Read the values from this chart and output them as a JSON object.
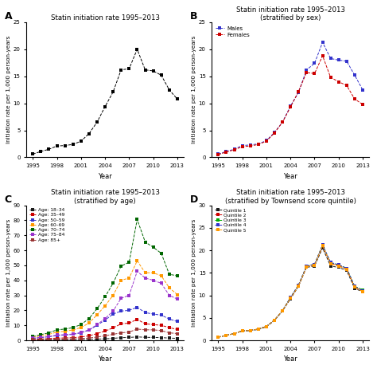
{
  "years": [
    1995,
    1996,
    1997,
    1998,
    1999,
    2000,
    2001,
    2002,
    2003,
    2004,
    2005,
    2006,
    2007,
    2008,
    2009,
    2010,
    2011,
    2012,
    2013
  ],
  "panel_A": {
    "title": "Statin initiation rate 1995–2013",
    "values": [
      0.6,
      1.1,
      1.5,
      2.1,
      2.2,
      2.4,
      3.0,
      4.4,
      6.5,
      9.4,
      12.1,
      16.2,
      16.4,
      20.0,
      16.2,
      16.0,
      15.2,
      12.5,
      10.8
    ]
  },
  "panel_B": {
    "title": "Statin initiation rate 1995–2013\n(stratified by sex)",
    "males": [
      0.6,
      1.1,
      1.5,
      2.2,
      2.3,
      2.5,
      3.1,
      4.6,
      6.5,
      9.5,
      12.0,
      16.2,
      17.4,
      21.3,
      18.3,
      18.0,
      17.8,
      15.2,
      12.5
    ],
    "females": [
      0.5,
      1.0,
      1.4,
      2.0,
      2.1,
      2.4,
      3.0,
      4.5,
      6.5,
      9.3,
      12.2,
      15.7,
      15.5,
      18.8,
      14.8,
      14.0,
      13.3,
      10.8,
      9.8
    ]
  },
  "panel_C": {
    "title": "Statin initiation rate 1995–2013\n(stratified by age)",
    "age_18_34": [
      0.2,
      0.3,
      0.3,
      0.4,
      0.4,
      0.4,
      0.5,
      0.6,
      0.8,
      1.0,
      1.3,
      1.8,
      1.9,
      2.3,
      2.0,
      1.9,
      1.8,
      1.5,
      1.3
    ],
    "age_35_49": [
      0.6,
      0.9,
      1.2,
      1.5,
      1.6,
      1.8,
      2.2,
      3.0,
      4.5,
      6.2,
      8.3,
      11.0,
      11.5,
      14.0,
      11.0,
      10.5,
      10.0,
      8.5,
      7.2
    ],
    "age_50_59": [
      1.2,
      1.8,
      2.4,
      3.2,
      3.5,
      4.0,
      5.0,
      6.8,
      10.0,
      13.5,
      17.5,
      19.5,
      20.0,
      22.0,
      18.5,
      17.5,
      16.8,
      14.2,
      12.5
    ],
    "age_60_69": [
      2.0,
      3.0,
      4.0,
      5.5,
      6.0,
      7.0,
      8.5,
      11.5,
      17.0,
      23.0,
      30.0,
      40.0,
      41.5,
      53.0,
      45.0,
      45.0,
      43.0,
      35.0,
      30.5
    ],
    "age_70_74": [
      2.5,
      3.8,
      5.0,
      7.0,
      7.5,
      8.5,
      10.5,
      14.5,
      21.0,
      29.0,
      38.0,
      49.5,
      52.0,
      80.5,
      65.5,
      62.0,
      58.0,
      44.0,
      43.0
    ],
    "age_75_84": [
      1.5,
      2.0,
      2.5,
      3.5,
      3.8,
      4.2,
      5.2,
      7.0,
      10.5,
      14.5,
      19.5,
      28.0,
      30.0,
      46.0,
      41.5,
      40.0,
      38.0,
      30.0,
      27.5
    ],
    "age_85p": [
      0.3,
      0.5,
      0.6,
      0.8,
      0.9,
      1.0,
      1.2,
      1.5,
      2.2,
      3.0,
      4.0,
      5.0,
      5.5,
      7.5,
      7.0,
      7.0,
      6.5,
      5.0,
      4.5
    ]
  },
  "panel_D": {
    "title": "Statin initiation rate 1995–2013\n(stratified by Townsend score quintile)",
    "q1": [
      0.7,
      1.1,
      1.5,
      2.1,
      2.2,
      2.4,
      3.0,
      4.4,
      6.5,
      9.2,
      12.0,
      16.2,
      16.5,
      20.5,
      16.5,
      16.2,
      15.5,
      11.5,
      10.8
    ],
    "q2": [
      0.7,
      1.1,
      1.5,
      2.1,
      2.2,
      2.5,
      3.1,
      4.5,
      6.6,
      9.4,
      12.2,
      16.4,
      16.8,
      21.0,
      17.0,
      16.6,
      15.8,
      11.8,
      11.0
    ],
    "q3": [
      0.7,
      1.1,
      1.5,
      2.1,
      2.2,
      2.5,
      3.1,
      4.5,
      6.6,
      9.5,
      12.3,
      16.5,
      16.9,
      21.2,
      17.2,
      16.8,
      16.0,
      12.0,
      11.2
    ],
    "q4": [
      0.7,
      1.1,
      1.5,
      2.1,
      2.2,
      2.5,
      3.1,
      4.5,
      6.6,
      9.5,
      12.3,
      16.5,
      16.9,
      21.2,
      17.3,
      16.8,
      16.0,
      12.0,
      11.0
    ],
    "q5": [
      0.7,
      1.1,
      1.5,
      2.1,
      2.2,
      2.5,
      3.1,
      4.5,
      6.6,
      9.3,
      12.1,
      16.3,
      16.7,
      21.0,
      17.0,
      16.5,
      15.8,
      11.8,
      10.8
    ]
  },
  "ylabel": "Initiation rate per 1,000 person-years",
  "xlabel": "Year",
  "bg_color": "#f0f0f0",
  "age_colors": [
    "#1a1a1a",
    "#cc0000",
    "#3333cc",
    "#ff9900",
    "#006600",
    "#9933cc",
    "#993333"
  ],
  "age_labels": [
    "Age: 18–34",
    "Age: 35–49",
    "Age: 50–59",
    "Age: 60–69",
    "Age: 70–74",
    "Age: 75–84",
    "Age: 85+"
  ],
  "q_colors": [
    "#1a1a1a",
    "#cc0000",
    "#00aa00",
    "#3333cc",
    "#ff9900"
  ],
  "q_labels": [
    "Quintile 1",
    "Quintile 2",
    "Quintile 3",
    "Quintile 4",
    "Quintile 5"
  ],
  "male_color": "#3333cc",
  "female_color": "#cc0000"
}
